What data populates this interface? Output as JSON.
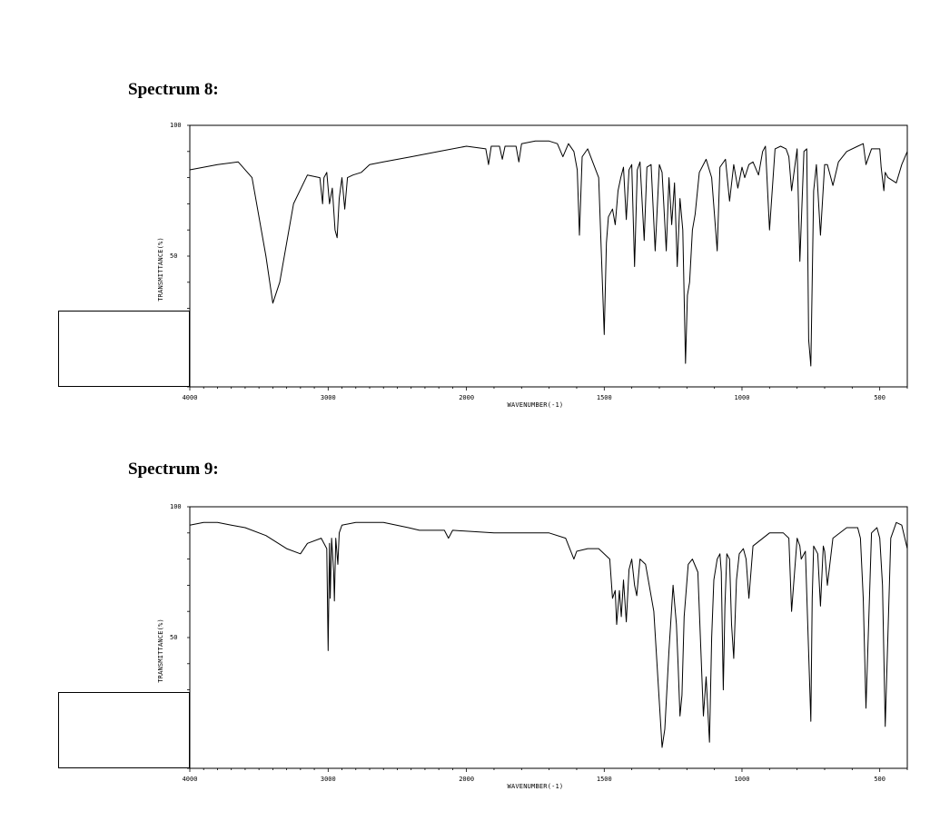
{
  "spectrum8": {
    "heading": "Spectrum 8:"
  },
  "spectrum9": {
    "heading": "Spectrum 9:"
  },
  "chart_data": [
    {
      "type": "line",
      "title": "",
      "xlabel": "WAVENUMBER(-1)",
      "ylabel": "TRANSMITTANCE(%)",
      "xlim": [
        4000,
        400
      ],
      "ylim": [
        0,
        100
      ],
      "x_ticks": [
        "4000",
        "3000",
        "2000",
        "1500",
        "1000",
        "500"
      ],
      "y_ticks": [
        "100",
        "50"
      ],
      "grid": false,
      "series": [
        {
          "x": [
            4000,
            3800,
            3650,
            3550,
            3450,
            3400,
            3350,
            3250,
            3150,
            3060,
            3040,
            3030,
            3010,
            2990,
            2970,
            2950,
            2935,
            2920,
            2900,
            2880,
            2860,
            2820,
            2760,
            2700,
            2600,
            2400,
            2200,
            2000,
            1930,
            1920,
            1910,
            1880,
            1870,
            1860,
            1820,
            1810,
            1800,
            1750,
            1700,
            1670,
            1650,
            1630,
            1610,
            1598,
            1590,
            1580,
            1560,
            1520,
            1500,
            1492,
            1485,
            1470,
            1460,
            1450,
            1440,
            1430,
            1420,
            1410,
            1400,
            1390,
            1380,
            1370,
            1355,
            1345,
            1330,
            1315,
            1300,
            1290,
            1275,
            1265,
            1255,
            1245,
            1235,
            1225,
            1215,
            1205,
            1198,
            1190,
            1180,
            1170,
            1155,
            1130,
            1110,
            1090,
            1080,
            1060,
            1045,
            1030,
            1015,
            1000,
            990,
            975,
            960,
            940,
            925,
            915,
            900,
            880,
            860,
            840,
            830,
            820,
            800,
            790,
            775,
            765,
            758,
            750,
            740,
            730,
            715,
            700,
            690,
            670,
            650,
            620,
            580,
            560,
            550,
            530,
            500,
            495,
            485,
            480,
            470,
            440,
            420,
            400
          ],
          "y": [
            83,
            85,
            86,
            80,
            50,
            32,
            40,
            70,
            81,
            80,
            70,
            80,
            82,
            70,
            76,
            60,
            57,
            72,
            80,
            68,
            80,
            81,
            82,
            85,
            86,
            88,
            90,
            92,
            91,
            85,
            92,
            92,
            87,
            92,
            92,
            86,
            93,
            94,
            94,
            93,
            88,
            93,
            90,
            83,
            58,
            88,
            91,
            80,
            20,
            55,
            65,
            68,
            62,
            75,
            80,
            84,
            64,
            83,
            85,
            46,
            83,
            86,
            56,
            84,
            85,
            52,
            85,
            82,
            52,
            80,
            62,
            78,
            46,
            72,
            60,
            9,
            35,
            40,
            60,
            66,
            82,
            87,
            80,
            52,
            84,
            87,
            71,
            85,
            76,
            84,
            80,
            85,
            86,
            81,
            90,
            92,
            60,
            91,
            92,
            91,
            88,
            75,
            91,
            48,
            90,
            91,
            18,
            8,
            75,
            85,
            58,
            85,
            85,
            77,
            86,
            90,
            92,
            93,
            85,
            91,
            91,
            84,
            75,
            82,
            80,
            78,
            85,
            90
          ]
        }
      ]
    },
    {
      "type": "line",
      "title": "",
      "xlabel": "WAVENUMBER(-1)",
      "ylabel": "TRANSMITTANCE(%)",
      "xlim": [
        4000,
        400
      ],
      "ylim": [
        0,
        100
      ],
      "x_ticks": [
        "4000",
        "3000",
        "2000",
        "1500",
        "1000",
        "500"
      ],
      "y_ticks": [
        "100",
        "50"
      ],
      "grid": false,
      "series": [
        {
          "x": [
            4000,
            3900,
            3800,
            3700,
            3600,
            3450,
            3300,
            3200,
            3150,
            3050,
            3010,
            3000,
            2990,
            2985,
            2975,
            2960,
            2955,
            2945,
            2930,
            2920,
            2900,
            2800,
            2600,
            2420,
            2340,
            2160,
            2130,
            2100,
            1900,
            1700,
            1640,
            1610,
            1600,
            1560,
            1520,
            1480,
            1470,
            1460,
            1455,
            1445,
            1438,
            1430,
            1420,
            1410,
            1400,
            1390,
            1382,
            1370,
            1350,
            1320,
            1290,
            1280,
            1265,
            1250,
            1238,
            1232,
            1225,
            1218,
            1210,
            1195,
            1180,
            1160,
            1140,
            1130,
            1118,
            1110,
            1102,
            1090,
            1080,
            1075,
            1068,
            1062,
            1055,
            1045,
            1038,
            1030,
            1020,
            1010,
            995,
            985,
            975,
            960,
            900,
            850,
            830,
            820,
            800,
            790,
            785,
            770,
            750,
            745,
            740,
            725,
            715,
            705,
            700,
            690,
            670,
            620,
            580,
            570,
            560,
            550,
            530,
            510,
            500,
            490,
            480,
            460,
            440,
            420,
            400
          ],
          "y": [
            93,
            94,
            94,
            93,
            92,
            89,
            84,
            82,
            86,
            88,
            84,
            45,
            86,
            65,
            88,
            75,
            64,
            88,
            78,
            90,
            93,
            94,
            94,
            92,
            91,
            91,
            88,
            91,
            90,
            90,
            88,
            80,
            83,
            84,
            84,
            80,
            65,
            68,
            55,
            68,
            58,
            72,
            56,
            76,
            80,
            70,
            66,
            80,
            78,
            60,
            8,
            15,
            45,
            70,
            55,
            40,
            20,
            28,
            58,
            78,
            80,
            75,
            20,
            35,
            10,
            50,
            72,
            80,
            82,
            75,
            30,
            62,
            82,
            80,
            55,
            42,
            72,
            82,
            84,
            80,
            65,
            85,
            90,
            90,
            88,
            60,
            88,
            85,
            80,
            83,
            18,
            65,
            85,
            82,
            62,
            85,
            83,
            70,
            88,
            92,
            92,
            88,
            65,
            23,
            90,
            92,
            88,
            70,
            16,
            88,
            94,
            93,
            84
          ]
        }
      ]
    }
  ]
}
